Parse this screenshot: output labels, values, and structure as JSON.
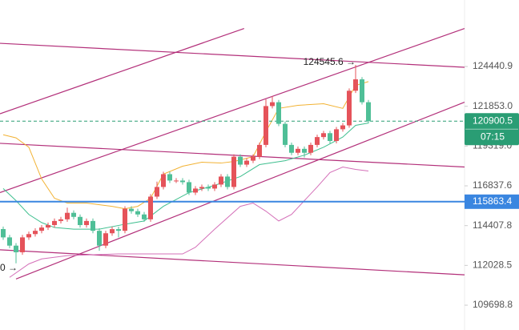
{
  "chart_data": {
    "type": "candlestick",
    "log_scale": true,
    "ylim": [
      108270,
      128890
    ],
    "yticks": [
      109698.8,
      112028.5,
      114407.8,
      116837.6,
      {
        "value": 119319,
        "label": "119319.0"
      },
      {
        "value": 121853,
        "label": "121853.0"
      },
      124440.9
    ],
    "up_color": "#e5535a",
    "down_color": "#4fbf97",
    "open": [
      114200,
      113699,
      113204,
      112808,
      113699,
      113897,
      114095,
      114293,
      114442,
      114689,
      114788,
      115184,
      114937,
      114442,
      114689,
      114095,
      113204,
      113947,
      114194,
      114095,
      115432,
      115283,
      115085,
      114788,
      116174,
      116768,
      117560,
      117164,
      117164,
      117065,
      116422,
      116670,
      116768,
      116670,
      116917,
      117412,
      116768,
      118649,
      118154,
      118402,
      118649,
      119392,
      121867,
      122114,
      120728,
      119392,
      118897,
      119144,
      118897,
      119392,
      119887,
      120134,
      119639,
      120382,
      120629,
      122857,
      123599,
      122114
    ],
    "high": [
      114350,
      113849,
      113354,
      113849,
      114047,
      114245,
      114443,
      114592,
      114839,
      114938,
      115500,
      115334,
      115087,
      114839,
      114839,
      114245,
      114097,
      114344,
      114344,
      115582,
      115582,
      115433,
      115235,
      116324,
      117100,
      117710,
      117710,
      117314,
      117314,
      117215,
      116820,
      116918,
      116918,
      117067,
      117562,
      117562,
      118799,
      118799,
      118552,
      118799,
      119542,
      122300,
      122500,
      122264,
      120878,
      119542,
      119294,
      119294,
      119542,
      120037,
      120284,
      120284,
      120532,
      120779,
      123007,
      124545.6,
      123749,
      122264
    ],
    "low": [
      113549,
      113054,
      112150,
      112658,
      113549,
      113747,
      113945,
      114143,
      114292,
      114539,
      114638,
      114787,
      114292,
      114292,
      113945,
      112900,
      113054,
      113797,
      113700,
      113945,
      115133,
      114935,
      114638,
      114638,
      116024,
      116618,
      117014,
      117014,
      116915,
      116272,
      116272,
      116520,
      116520,
      116520,
      116767,
      116618,
      116618,
      118004,
      118004,
      118252,
      118499,
      119242,
      121717,
      120578,
      119242,
      118747,
      118747,
      118600,
      118747,
      119242,
      119737,
      119489,
      119489,
      120232,
      120479,
      122707,
      121964,
      120750.5
    ],
    "close": [
      113699,
      113204,
      112808,
      113699,
      113897,
      114095,
      114293,
      114442,
      114689,
      114788,
      115184,
      114937,
      114442,
      114689,
      114095,
      113204,
      113947,
      114194,
      114095,
      115432,
      115283,
      115085,
      114788,
      116174,
      116768,
      117560,
      117164,
      117164,
      117065,
      116422,
      116670,
      116768,
      116670,
      116917,
      117412,
      116768,
      118649,
      118154,
      118402,
      118649,
      119392,
      121867,
      122114,
      120728,
      119392,
      118897,
      119144,
      118897,
      119392,
      119887,
      120134,
      119639,
      120382,
      120629,
      122857,
      123599,
      122114,
      120900.5
    ],
    "indicators": [
      {
        "color": "#f2b233",
        "x": [
          0,
          2,
          4,
          6,
          8,
          10,
          13,
          17,
          19,
          21,
          23,
          25,
          28,
          31,
          34,
          36,
          39,
          41,
          43,
          46,
          50,
          53,
          55,
          57
        ],
        "values": [
          120035,
          119838,
          119243,
          117263,
          116075,
          115778,
          115778,
          115580,
          115432,
          115580,
          116075,
          117560,
          118056,
          118303,
          118253,
          118352,
          118649,
          120233,
          121718,
          121916,
          122015,
          121718,
          123203,
          123451
        ]
      },
      {
        "color": "#3fbf8f",
        "x": [
          0,
          2,
          4,
          6,
          8,
          11,
          15,
          19,
          22,
          25,
          29,
          33,
          37,
          40,
          44,
          47,
          50,
          53,
          55,
          57
        ],
        "values": [
          116670,
          115927,
          115085,
          114591,
          114293,
          114194,
          114194,
          114492,
          114689,
          115580,
          116422,
          116868,
          117412,
          118154,
          118402,
          118748,
          119243,
          119887,
          120630,
          120778
        ]
      },
      {
        "color": "#d46fb8",
        "x": [
          1,
          4,
          6,
          10,
          18,
          28,
          30,
          33,
          37,
          39,
          41,
          43,
          45,
          47,
          49,
          51,
          53,
          55,
          57
        ],
        "values": [
          111324,
          112116,
          112413,
          112610,
          112710,
          112710,
          113106,
          114194,
          115580,
          115778,
          115284,
          114689,
          115085,
          115927,
          116768,
          117659,
          118006,
          117857,
          117758
        ]
      }
    ],
    "trend_lines": [
      {
        "color": "#b3307a",
        "x": [
          -0.5,
          72
        ],
        "values": [
          125976,
          124391
        ]
      },
      {
        "color": "#b3307a",
        "x": [
          -0.5,
          37.6
        ],
        "values": [
          121372,
          126966
        ]
      },
      {
        "color": "#b3307a",
        "x": [
          -0.5,
          72
        ],
        "values": [
          116422,
          126966
        ]
      },
      {
        "color": "#b3307a",
        "x": [
          2,
          72
        ],
        "values": [
          111225,
          122115
        ]
      },
      {
        "color": "#b3307a",
        "x": [
          -0.5,
          72
        ],
        "values": [
          119491,
          118006
        ]
      },
      {
        "color": "#b3307a",
        "x": [
          -0.5,
          72
        ],
        "values": [
          112957,
          111472
        ]
      }
    ],
    "price_line": {
      "value": 115863.4,
      "color": "#3a86e0"
    },
    "last_price_color": "#2a9d74",
    "countdown": "07:15",
    "annotations": [
      "124545.6 →",
      "0 →"
    ]
  }
}
